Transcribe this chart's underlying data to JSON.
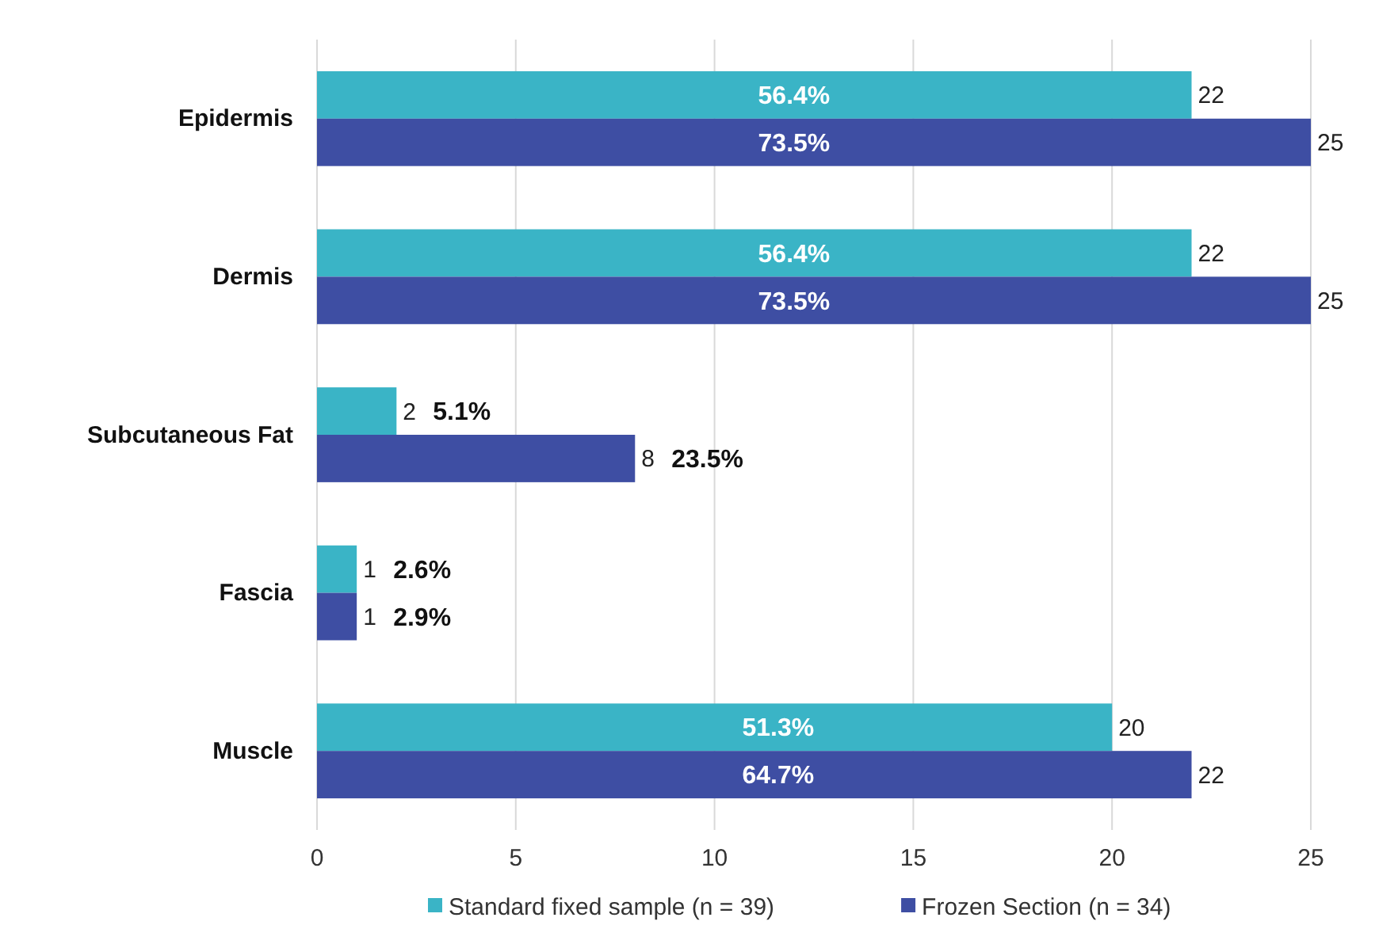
{
  "chart_data": {
    "type": "bar",
    "orientation": "horizontal",
    "categories": [
      "Epidermis",
      "Dermis",
      "Subcutaneous Fat",
      "Fascia",
      "Muscle"
    ],
    "series": [
      {
        "name": "Standard fixed sample (n = 39)",
        "color": "#3ab4c6",
        "values": [
          22,
          22,
          2,
          1,
          20
        ]
      },
      {
        "name": "Frozen Section (n = 34)",
        "color": "#3e4ea3",
        "values": [
          25,
          25,
          8,
          1,
          22
        ]
      }
    ],
    "annotations": [
      {
        "text": "56.4%",
        "x": 12,
        "y": "Epidermis"
      },
      {
        "text": "73.5%",
        "x": 12,
        "y": "Epidermis"
      },
      {
        "text": "56.4%",
        "x": 12,
        "y": "Dermis"
      },
      {
        "text": "73.5%",
        "x": 12,
        "y": "Dermis"
      },
      {
        "text": "5.1%",
        "x": 2,
        "y": "Subcutaneous Fat"
      },
      {
        "text": "23.5%",
        "x": 8,
        "y": "Subcutaneous Fat"
      },
      {
        "text": "2.6%",
        "x": 1,
        "y": "Fascia"
      },
      {
        "text": "2.9%",
        "x": 1,
        "y": "Fascia"
      },
      {
        "text": "51.3%",
        "x": 11.6,
        "y": "Muscle"
      },
      {
        "text": "64.7%",
        "x": 11.6,
        "y": "Muscle"
      }
    ],
    "xlim": [
      0,
      25
    ],
    "xticks": [
      0,
      5,
      10,
      15,
      20,
      25
    ],
    "grid": "x",
    "legend": "bottom",
    "data_labels": true
  }
}
